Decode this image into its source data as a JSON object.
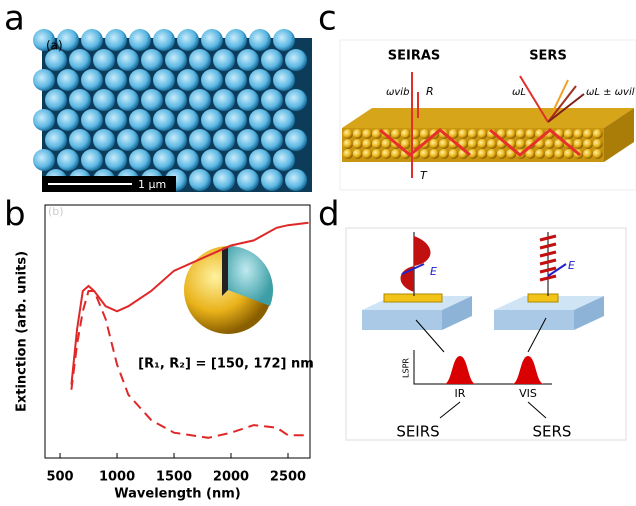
{
  "panel_a": {
    "letter": "a",
    "tag": "(a)",
    "scale_bar": "1 μm"
  },
  "panel_b": {
    "letter": "b",
    "tag": "(b)",
    "inset_label": "[R₁, R₂] = [150, 172] nm"
  },
  "panel_c": {
    "letter": "c",
    "left_title": "SEIRAS",
    "right_title": "SERS",
    "omega_vib": "ωvib",
    "reflect": "R",
    "transmit": "T",
    "omega_l": "ωL",
    "omega_out": "ωL ± ωvil"
  },
  "panel_d": {
    "letter": "d",
    "field_left": "E",
    "field_right": "E",
    "axis_label": "LSPR",
    "peak_left": "IR",
    "peak_right": "VIS",
    "method_left": "SEIRS",
    "method_right": "SERS"
  },
  "chart_data": {
    "type": "line",
    "x_label": "Wavelength (nm)",
    "y_label": "Extinction (arb. units)",
    "x": [
      600,
      650,
      700,
      750,
      800,
      900,
      1000,
      1100,
      1300,
      1500,
      1800,
      2000,
      2200,
      2400,
      2500,
      2680
    ],
    "series": [
      {
        "color": "#e02828",
        "style": "solid",
        "values": [
          0.29,
          0.51,
          0.66,
          0.68,
          0.66,
          0.6,
          0.58,
          0.6,
          0.66,
          0.74,
          0.8,
          0.84,
          0.86,
          0.91,
          0.92,
          0.93
        ]
      },
      {
        "color": "#e02828",
        "style": "dashed",
        "values": [
          0.27,
          0.45,
          0.58,
          0.66,
          0.66,
          0.55,
          0.37,
          0.25,
          0.15,
          0.1,
          0.08,
          0.1,
          0.13,
          0.12,
          0.09,
          0.09
        ]
      }
    ],
    "xlim": [
      368,
      2693
    ],
    "xticks": [
      500,
      1000,
      1500,
      2000,
      2500
    ],
    "ylim": [
      0,
      1
    ]
  }
}
